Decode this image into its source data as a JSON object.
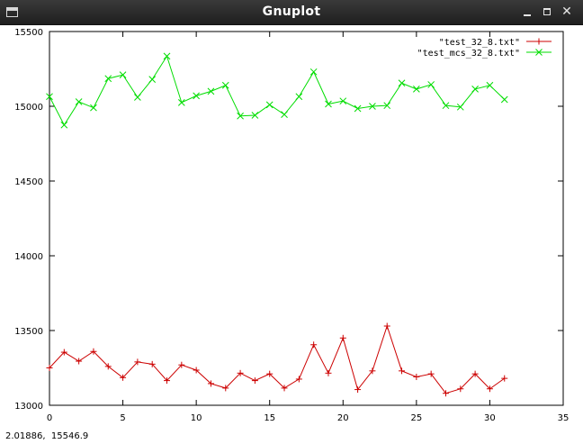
{
  "window": {
    "title": "Gnuplot",
    "buttons": {
      "minimize": "minimize-icon",
      "maximize": "maximize-icon",
      "close": "✕"
    }
  },
  "status_bar": {
    "coordinates": "2.01886,  15546.9"
  },
  "chart_data": {
    "type": "line",
    "title": "",
    "xlabel": "",
    "ylabel": "",
    "xlim": [
      0,
      35
    ],
    "ylim": [
      13000,
      15500
    ],
    "xticks": [
      0,
      5,
      10,
      15,
      20,
      25,
      30,
      35
    ],
    "yticks": [
      13000,
      13500,
      14000,
      14500,
      15000,
      15500
    ],
    "grid": false,
    "legend_position": "top-right",
    "x": [
      0,
      1,
      2,
      3,
      4,
      5,
      6,
      7,
      8,
      9,
      10,
      11,
      12,
      13,
      14,
      15,
      16,
      17,
      18,
      19,
      20,
      21,
      22,
      23,
      24,
      25,
      26,
      27,
      28,
      29,
      30,
      31
    ],
    "series": [
      {
        "name": "\"test_32_8.txt\"",
        "color": "#cc0000",
        "marker": "plus",
        "values": [
          13250,
          13355,
          13295,
          13360,
          13260,
          13185,
          13290,
          13275,
          13165,
          13270,
          13235,
          13145,
          13115,
          13215,
          13165,
          13210,
          13115,
          13175,
          13405,
          13215,
          13450,
          13105,
          13230,
          13530,
          13230,
          13190,
          13210,
          13080,
          13110,
          13210,
          13110,
          13180
        ]
      },
      {
        "name": "\"test_mcs_32_8.txt\"",
        "color": "#00dd00",
        "marker": "cross",
        "values": [
          15065,
          14875,
          15030,
          14990,
          15185,
          15210,
          15060,
          15180,
          15335,
          15025,
          15070,
          15100,
          15140,
          14935,
          14940,
          15010,
          14945,
          15065,
          15230,
          15015,
          15035,
          14985,
          15000,
          15005,
          15155,
          15115,
          15145,
          15005,
          14995,
          15115,
          15140,
          15045
        ]
      }
    ]
  }
}
